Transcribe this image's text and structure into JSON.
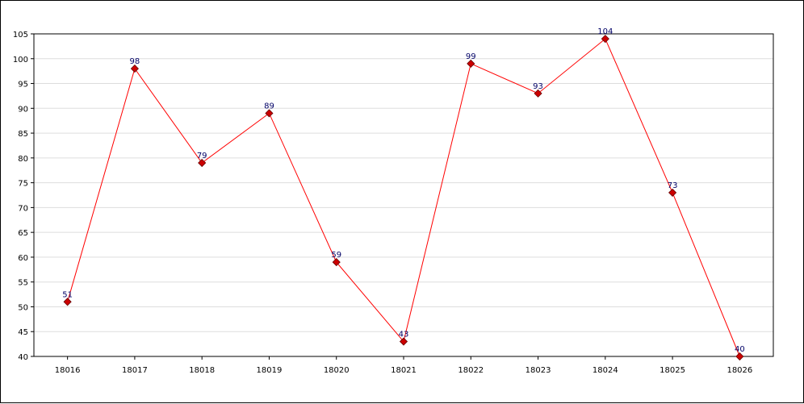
{
  "chart_data": {
    "type": "line",
    "title": "",
    "xlabel": "",
    "ylabel": "",
    "categories": [
      "18016",
      "18017",
      "18018",
      "18019",
      "18020",
      "18021",
      "18022",
      "18023",
      "18024",
      "18025",
      "18026"
    ],
    "series": [
      {
        "values": [
          51,
          98,
          79,
          89,
          59,
          43,
          99,
          93,
          104,
          73,
          40
        ],
        "color": "#ff0000",
        "marker_color": "#cc0000"
      }
    ],
    "ylim": [
      40,
      105
    ],
    "yticks": [
      40,
      45,
      50,
      55,
      60,
      65,
      70,
      75,
      80,
      85,
      90,
      95,
      100,
      105
    ],
    "grid": true,
    "grid_color": "#dddddd",
    "legend": "none",
    "data_labels": true
  }
}
